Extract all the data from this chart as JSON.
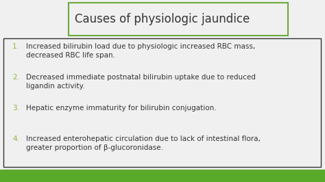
{
  "title": "Causes of physiologic jaundice",
  "title_box_color": "#6aaa3a",
  "background_color": "#f0f0f0",
  "bottom_bar_color": "#5aaa2a",
  "content_box_color": "#333333",
  "number_color": "#8ab840",
  "text_color": "#333333",
  "items": [
    {
      "num": "1.",
      "line1": "Increased bilirubin load due to physiologic increased RBC mass,",
      "line2": "decreased RBC life span."
    },
    {
      "num": "2.",
      "line1": "Decreased immediate postnatal bilirubin uptake due to reduced",
      "line2": "ligandin activity."
    },
    {
      "num": "3.",
      "line1": "Hepatic enzyme immaturity for bilirubin conjugation.",
      "line2": ""
    },
    {
      "num": "4.",
      "line1": "Increased enterohepatic circulation due to lack of intestinal flora,",
      "line2": "greater proportion of β-glucoronidase."
    }
  ],
  "figwidth": 4.74,
  "figheight": 2.66,
  "dpi": 100
}
